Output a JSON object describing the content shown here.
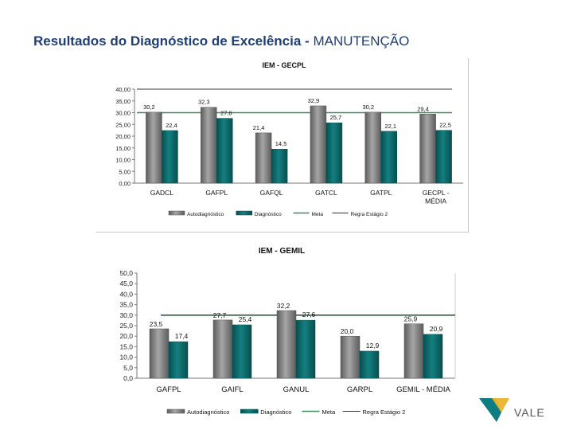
{
  "slide": {
    "title_bold": "Resultados do Diagnóstico de Excelência -",
    "title_normal": "MANUTENÇÃO"
  },
  "logo": {
    "text": "VALE",
    "colors": {
      "teal": "#0d7d83",
      "gold": "#e9b32b"
    }
  },
  "colors": {
    "autodiagnostico": "#808080",
    "diagnostico": "#0a6b6b",
    "meta": "#3a8a5c",
    "regra": "#333333",
    "title": "#1f3e73"
  },
  "chart_data": [
    {
      "type": "bar",
      "title": "IEM - GECPL",
      "categories": [
        "GADCL",
        "GAFPL",
        "GAFQL",
        "GATCL",
        "GATPL",
        "GECPL - MÉDIA"
      ],
      "series": [
        {
          "name": "Autodiagnóstico",
          "values": [
            30.2,
            32.3,
            21.4,
            32.9,
            30.2,
            29.4
          ]
        },
        {
          "name": "Diagnóstico",
          "values": [
            22.4,
            27.6,
            14.5,
            25.7,
            22.1,
            22.5
          ]
        }
      ],
      "lines": [
        {
          "name": "Meta",
          "value": 30.0
        },
        {
          "name": "Regra Estágio 2",
          "value": 40.0
        }
      ],
      "value_labels": {
        "Autodiagnóstico": [
          "30,2",
          "32,3",
          "21,4",
          "32,9",
          "30,2",
          "29,4"
        ],
        "Diagnóstico": [
          "22,4",
          "27,6",
          "14,5",
          "25,7",
          "22,1",
          "22,5"
        ]
      },
      "ylim": [
        0,
        40
      ],
      "yticks": [
        0,
        5,
        10,
        15,
        20,
        25,
        30,
        35,
        40
      ],
      "ytick_labels": [
        "0,00",
        "5,00",
        "10,00",
        "15,00",
        "20,00",
        "25,00",
        "30,00",
        "35,00",
        "40,00"
      ],
      "grid": false,
      "legend_position": "bottom"
    },
    {
      "type": "bar",
      "title": "IEM - GEMIL",
      "categories": [
        "GAFPL",
        "GAIFL",
        "GANUL",
        "GARPL",
        "GEMIL - MÉDIA"
      ],
      "series": [
        {
          "name": "Autodiagnóstico",
          "values": [
            23.5,
            27.7,
            32.2,
            20.0,
            25.9
          ]
        },
        {
          "name": "Diagnóstico",
          "values": [
            17.4,
            25.4,
            27.6,
            12.9,
            20.9
          ]
        }
      ],
      "lines": [
        {
          "name": "Meta",
          "value": 30.0
        },
        {
          "name": "Regra Estágio 2",
          "value": 30.0
        }
      ],
      "value_labels": {
        "Autodiagnóstico": [
          "23,5",
          "27,7",
          "32,2",
          "20,0",
          "25,9"
        ],
        "Diagnóstico": [
          "17,4",
          "25,4",
          "27,6",
          "12,9",
          "20,9"
        ]
      },
      "ylim": [
        0,
        50
      ],
      "yticks": [
        0,
        5,
        10,
        15,
        20,
        25,
        30,
        35,
        40,
        45,
        50
      ],
      "ytick_labels": [
        "0,0",
        "5,0",
        "10,0",
        "15,0",
        "20,0",
        "25,0",
        "30,0",
        "35,0",
        "40,0",
        "45,0",
        "50,0"
      ],
      "grid": false,
      "legend_position": "bottom"
    }
  ]
}
